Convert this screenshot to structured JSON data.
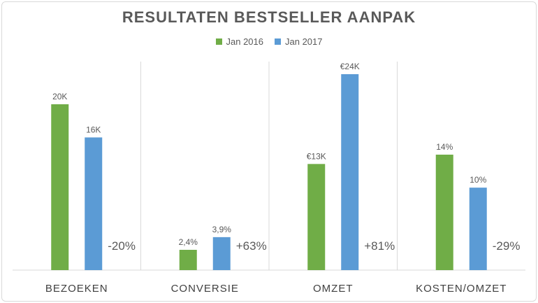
{
  "chart_data": {
    "type": "bar",
    "title": "RESULTATEN BESTSELLER AANPAK",
    "categories": [
      "BEZOEKEN",
      "CONVERSIE",
      "OMZET",
      "KOSTEN/OMZET"
    ],
    "series": [
      {
        "name": "Jan 2016",
        "color": "#70ad47",
        "values": [
          20,
          2.4,
          13,
          14
        ],
        "labels": [
          "20K",
          "2,4%",
          "€13K",
          "14%"
        ]
      },
      {
        "name": "Jan 2017",
        "color": "#5b9bd5",
        "values": [
          16,
          3.9,
          24,
          10
        ],
        "labels": [
          "16K",
          "3,9%",
          "€24K",
          "10%"
        ]
      }
    ],
    "changes": [
      "-20%",
      "+63%",
      "+81%",
      "-29%"
    ],
    "grid": false,
    "legend": "top-center"
  }
}
